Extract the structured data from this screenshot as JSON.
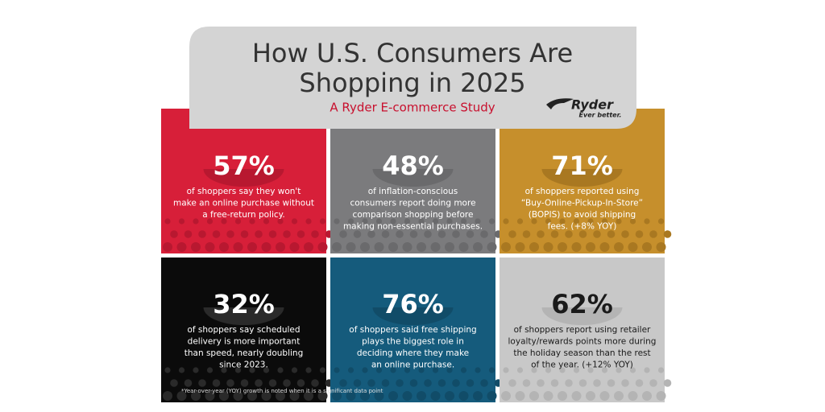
{
  "header": {
    "title_lines": [
      "How U.S. Consumers Are",
      "Shopping in 2025"
    ],
    "subtitle": "A Ryder E-commerce Study"
  },
  "logo": {
    "name": "Ryder",
    "tagline": "Ever better."
  },
  "tiles": [
    {
      "stat": "57%",
      "lines": [
        "of shoppers say they won't",
        "make an online purchase without",
        "a free-return policy."
      ]
    },
    {
      "stat": "48%",
      "lines": [
        "of inflation-conscious",
        "consumers report doing more",
        "comparison shopping before",
        "making non-essential purchases."
      ]
    },
    {
      "stat": "71%",
      "lines": [
        "of shoppers reported using",
        "“Buy-Online-Pickup-In-Store”",
        "(BOPIS) to avoid shipping",
        "fees. (+8% YOY)"
      ]
    },
    {
      "stat": "32%",
      "lines": [
        "of shoppers say scheduled",
        "delivery is more important",
        "than speed, nearly doubling",
        "since 2023."
      ]
    },
    {
      "stat": "76%",
      "lines": [
        "of shoppers said free shipping",
        "plays the biggest role in",
        "deciding where they make",
        "an online purchase."
      ]
    },
    {
      "stat": "62%",
      "lines": [
        "of shoppers report using retailer",
        "loyalty/rewards points more during",
        "the holiday season than the rest",
        "of the year. (+12% YOY)"
      ]
    }
  ],
  "footnote": "*Year-over-year (YOY) growth is noted when it is a significant data point"
}
